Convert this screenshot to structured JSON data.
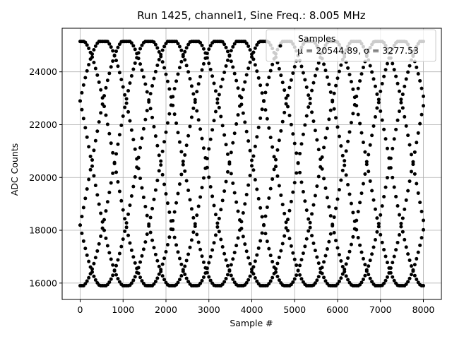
{
  "chart_data": {
    "type": "scatter",
    "title": "Run 1425, channel1, Sine Freq.: 8.005 MHz",
    "xlabel": "Sample #",
    "ylabel": "ADC Counts",
    "xlim": [
      -420,
      8420
    ],
    "ylim": [
      15380,
      25650
    ],
    "xticks": [
      0,
      1000,
      2000,
      3000,
      4000,
      5000,
      6000,
      7000,
      8000
    ],
    "yticks": [
      16000,
      18000,
      20000,
      22000,
      24000
    ],
    "xtick_labels": [
      "0",
      "1000",
      "2000",
      "3000",
      "4000",
      "5000",
      "6000",
      "7000",
      "8000"
    ],
    "ytick_labels": [
      "16000",
      "18000",
      "20000",
      "22000",
      "24000"
    ],
    "grid": true,
    "legend": {
      "placement": "top-right",
      "label": "Samples",
      "stats": "μ = 20544.89, σ = 3277.53"
    },
    "marker_color": "#000000",
    "series": [
      {
        "mean": 20544.89,
        "amplitude": 4700,
        "clip_min": 15900,
        "clip_max": 25150,
        "period_samples": 3209,
        "phases_deg": [
          90,
          30,
          -30,
          -90,
          -150,
          150
        ],
        "x_start": 0,
        "x_end": 8000,
        "x_step": 40
      }
    ]
  }
}
